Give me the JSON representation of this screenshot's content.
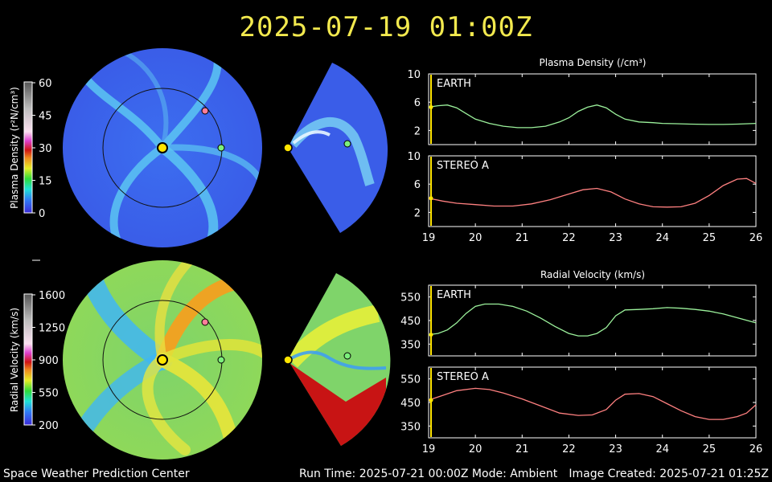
{
  "title": "2025-07-19  01:00Z",
  "colorbars": {
    "density": {
      "label": "Plasma Density (r²N/cm³)",
      "ticks": [
        "60",
        "45",
        "30",
        "15",
        "0"
      ]
    },
    "velocity": {
      "label": "Radial Velocity (km/s)",
      "ticks": [
        "1600",
        "1250",
        "900",
        "550",
        "200"
      ]
    }
  },
  "chart_data": [
    {
      "type": "line",
      "title": "Plasma Density (/cm³)",
      "xlabel": "",
      "ylabel": "",
      "xlim": [
        19,
        26
      ],
      "ylim": [
        0,
        10
      ],
      "x_ticks": [
        19,
        20,
        21,
        22,
        23,
        24,
        25,
        26
      ],
      "panels": [
        {
          "name": "EARTH",
          "color": "#9cf29c",
          "y_ticks": [
            2,
            6,
            10
          ],
          "x": [
            19.0,
            19.2,
            19.4,
            19.6,
            19.8,
            20.0,
            20.3,
            20.6,
            20.9,
            21.2,
            21.5,
            21.8,
            22.0,
            22.2,
            22.4,
            22.6,
            22.8,
            23.0,
            23.2,
            23.5,
            23.8,
            24.0,
            24.3,
            24.6,
            25.0,
            25.3,
            25.6,
            26.0
          ],
          "y": [
            5.3,
            5.5,
            5.6,
            5.2,
            4.4,
            3.6,
            3.0,
            2.6,
            2.4,
            2.4,
            2.6,
            3.2,
            3.8,
            4.7,
            5.3,
            5.6,
            5.2,
            4.3,
            3.6,
            3.2,
            3.1,
            3.0,
            2.95,
            2.9,
            2.85,
            2.85,
            2.9,
            3.0
          ]
        },
        {
          "name": "STEREO A",
          "color": "#ff8080",
          "y_ticks": [
            2,
            6,
            10
          ],
          "x": [
            19.0,
            19.3,
            19.6,
            20.0,
            20.4,
            20.8,
            21.2,
            21.6,
            22.0,
            22.3,
            22.6,
            22.9,
            23.2,
            23.5,
            23.8,
            24.1,
            24.4,
            24.7,
            25.0,
            25.3,
            25.6,
            25.8,
            26.0
          ],
          "y": [
            4.0,
            3.6,
            3.3,
            3.1,
            2.9,
            2.9,
            3.2,
            3.8,
            4.6,
            5.2,
            5.4,
            4.9,
            3.9,
            3.2,
            2.8,
            2.75,
            2.8,
            3.3,
            4.4,
            5.8,
            6.7,
            6.8,
            6.1
          ]
        }
      ]
    },
    {
      "type": "line",
      "title": "Radial Velocity (km/s)",
      "xlabel": "",
      "ylabel": "",
      "xlim": [
        19,
        26
      ],
      "ylim": [
        300,
        600
      ],
      "x_ticks": [
        19,
        20,
        21,
        22,
        23,
        24,
        25,
        26
      ],
      "panels": [
        {
          "name": "EARTH",
          "color": "#9cf29c",
          "y_ticks": [
            350,
            450,
            550
          ],
          "x": [
            19.0,
            19.2,
            19.4,
            19.6,
            19.8,
            20.0,
            20.2,
            20.5,
            20.8,
            21.1,
            21.4,
            21.7,
            22.0,
            22.2,
            22.4,
            22.6,
            22.8,
            23.0,
            23.2,
            23.5,
            23.8,
            24.1,
            24.4,
            24.7,
            25.0,
            25.3,
            25.6,
            26.0
          ],
          "y": [
            390,
            395,
            410,
            440,
            480,
            510,
            520,
            520,
            510,
            490,
            460,
            425,
            395,
            385,
            385,
            395,
            420,
            470,
            495,
            497,
            500,
            505,
            502,
            497,
            490,
            478,
            462,
            440
          ]
        },
        {
          "name": "STEREO A",
          "color": "#ff8080",
          "y_ticks": [
            350,
            450,
            550
          ],
          "x": [
            19.0,
            19.3,
            19.6,
            20.0,
            20.3,
            20.6,
            21.0,
            21.4,
            21.8,
            22.2,
            22.5,
            22.8,
            23.0,
            23.2,
            23.5,
            23.8,
            24.1,
            24.4,
            24.7,
            25.0,
            25.3,
            25.6,
            25.8,
            26.0
          ],
          "y": [
            460,
            480,
            500,
            510,
            505,
            490,
            465,
            435,
            405,
            395,
            397,
            420,
            460,
            485,
            488,
            475,
            445,
            415,
            390,
            378,
            378,
            390,
            405,
            440
          ]
        }
      ]
    }
  ],
  "footer": {
    "left": "Space Weather Prediction Center",
    "center": "Run Time: 2025-07-21 00:00Z  Mode: Ambient",
    "right": "Image Created: 2025-07-21 01:25Z"
  }
}
